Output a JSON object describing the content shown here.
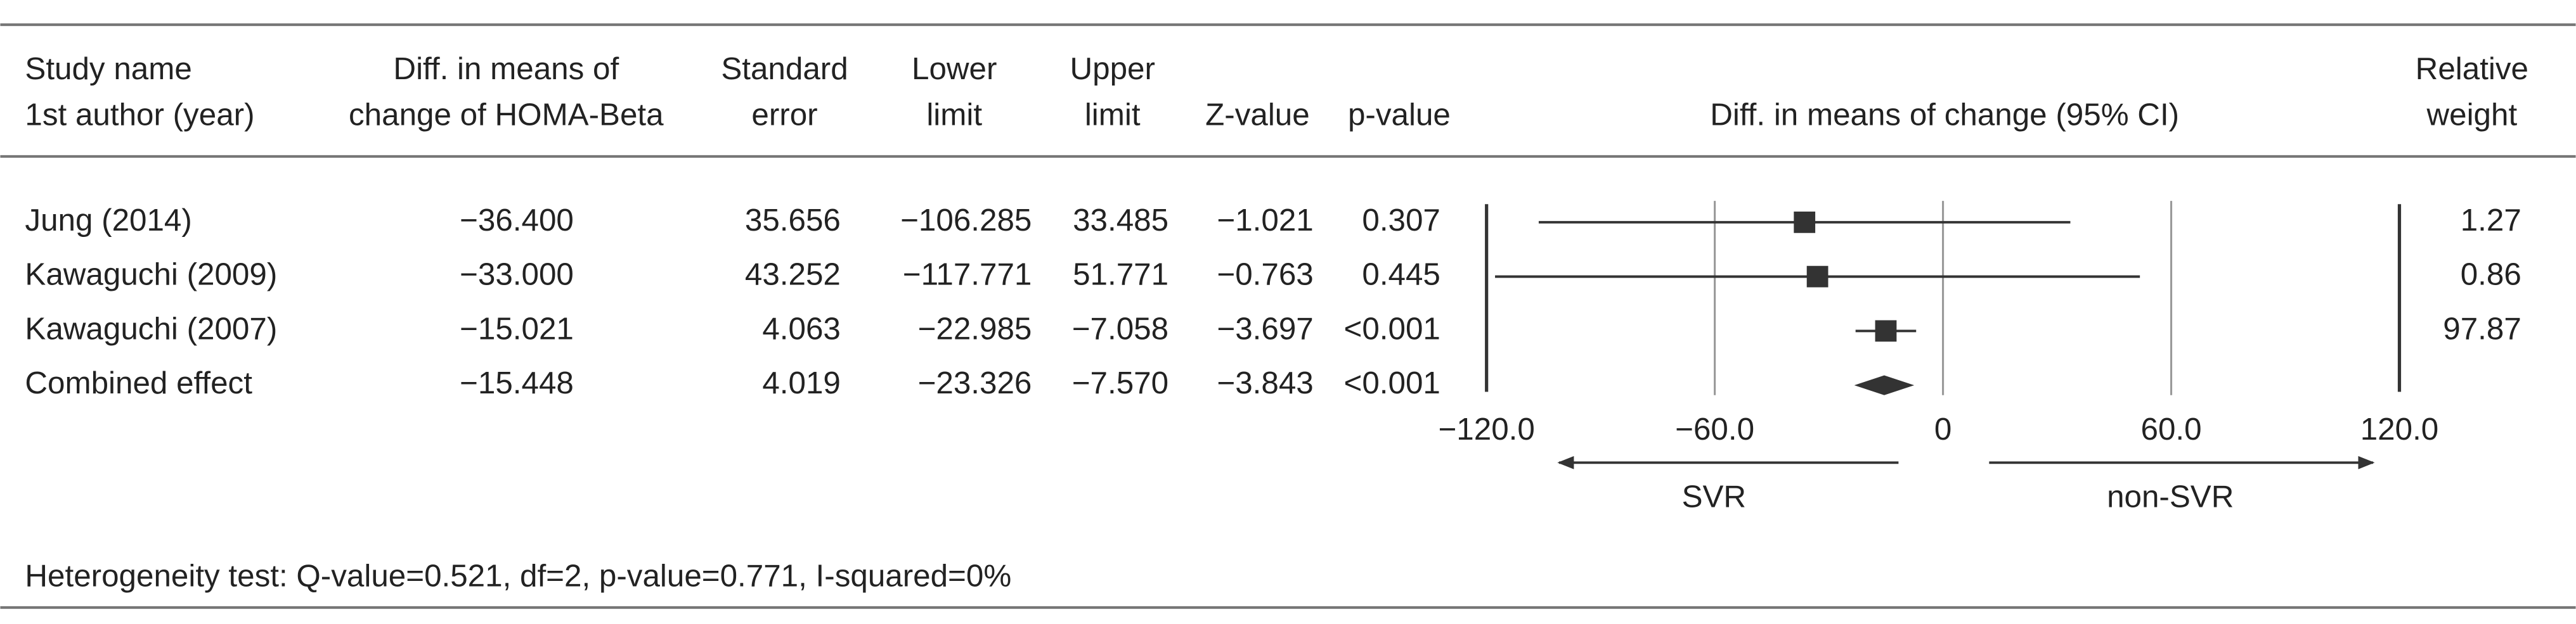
{
  "chart_data": {
    "type": "forest",
    "columns": [
      {
        "header": [
          "Study name",
          "1st author (year)"
        ],
        "values": [
          "Jung (2014)",
          "Kawaguchi (2009)",
          "Kawaguchi (2007)",
          "Combined effect"
        ]
      },
      {
        "header": [
          "Diff. in means of",
          "change of HOMA-Beta"
        ],
        "values": [
          -36.4,
          -33,
          -15.021,
          -15.448
        ],
        "value_labels": [
          "−36.400",
          "−33.000",
          "−15.021",
          "−15.448"
        ]
      },
      {
        "header": [
          "Standard",
          "error"
        ],
        "values": [
          35.656,
          43.252,
          4.063,
          4.019
        ]
      },
      {
        "header": [
          "Lower",
          "limit"
        ],
        "values": [
          -106.285,
          -117.771,
          -22.985,
          -23.326
        ],
        "value_labels": [
          "−106.285",
          "−117.771",
          "−22.985",
          "−23.326"
        ]
      },
      {
        "header": [
          "Upper",
          "limit"
        ],
        "values": [
          33.485,
          51.771,
          -7.058,
          -7.57
        ],
        "value_labels": [
          "33.485",
          "51.771",
          "−7.058",
          "−7.570"
        ]
      },
      {
        "header": [
          "Z-value"
        ],
        "values": [
          -1.021,
          -0.763,
          -3.697,
          -3.843
        ],
        "value_labels": [
          "−1.021",
          "−0.763",
          "−3.697",
          "−3.843"
        ]
      },
      {
        "header": [
          "p-value"
        ],
        "values": [
          0.307,
          0.445,
          0.001,
          0.001
        ],
        "value_labels": [
          "0.307",
          "0.445",
          "<0.001",
          "<0.001"
        ]
      }
    ],
    "plot": {
      "title": "Diff. in means of change (95% CI)",
      "xlim": [
        -120,
        120
      ],
      "xticks": [
        {
          "value": -120,
          "label": "−120.0"
        },
        {
          "value": -60,
          "label": "−60.0"
        },
        0,
        {
          "value": 60,
          "label": "60.0"
        },
        {
          "value": 120,
          "label": "120.0"
        }
      ],
      "left_label": "SVR",
      "right_label": "non-SVR",
      "color": "#333333",
      "grid": true
    },
    "weight": {
      "header": [
        "Relative",
        "weight"
      ],
      "values": [
        1.27,
        0.86,
        97.87,
        null
      ]
    },
    "footnote": "Heterogeneity test: Q-value=0.521, df=2, p-value=0.771, I-squared=0%"
  }
}
